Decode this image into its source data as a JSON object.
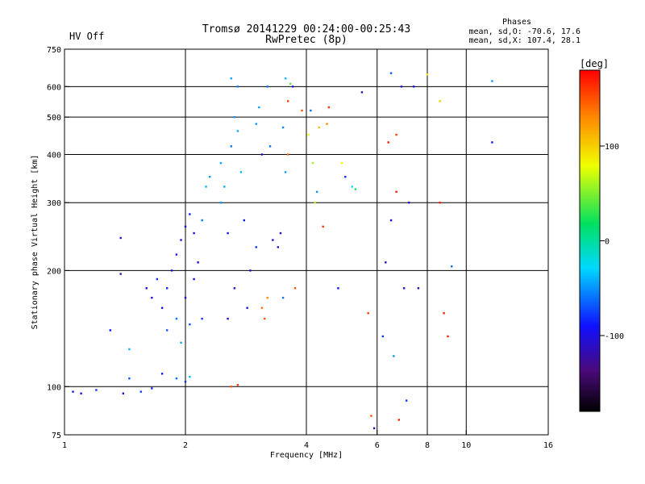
{
  "chart_data": {
    "type": "scatter",
    "title": "Tromsø 20141229 00:24:00-00:25:43",
    "subtitle": "RwPretec (8p)",
    "status_text": "HV Off",
    "status_color": "#cc0000",
    "stats": {
      "heading": "Phases",
      "line1": "mean, sd,O: -70.6, 17.6",
      "line2": "mean, sd,X: 107.4, 28.1"
    },
    "xlabel": "Frequency [MHz]",
    "ylabel": "Stationary phase Virtual Height [km]",
    "x_scale": "log",
    "y_scale": "log",
    "xlim": [
      1,
      16
    ],
    "ylim": [
      75,
      750
    ],
    "x_ticks": [
      "1",
      "2",
      "4",
      "6",
      "8",
      "10",
      "16"
    ],
    "y_ticks": [
      "75",
      "100",
      "200",
      "300",
      "400",
      "500",
      "600",
      "750"
    ],
    "x_grid": [
      2,
      4,
      6,
      8,
      10
    ],
    "y_grid": [
      100,
      200,
      300,
      400,
      500,
      600
    ],
    "grid": true,
    "colorbar": {
      "label": "[deg]",
      "range": [
        -180,
        180
      ],
      "ticks": [
        "100",
        "0",
        "-100"
      ]
    },
    "series": [
      {
        "values": [
          {
            "x": 1.05,
            "y": 97,
            "p": -85
          },
          {
            "x": 1.1,
            "y": 96,
            "p": -90
          },
          {
            "x": 1.2,
            "y": 98,
            "p": -80
          },
          {
            "x": 1.4,
            "y": 96,
            "p": -95
          },
          {
            "x": 1.55,
            "y": 97,
            "p": -75
          },
          {
            "x": 1.65,
            "y": 99,
            "p": -85
          },
          {
            "x": 1.75,
            "y": 108,
            "p": -90
          },
          {
            "x": 1.9,
            "y": 105,
            "p": -60
          },
          {
            "x": 2.0,
            "y": 103,
            "p": -80
          },
          {
            "x": 2.05,
            "y": 106,
            "p": -40
          },
          {
            "x": 2.6,
            "y": 100,
            "p": 150
          },
          {
            "x": 2.7,
            "y": 101,
            "p": 155
          },
          {
            "x": 1.38,
            "y": 243,
            "p": -100
          },
          {
            "x": 1.38,
            "y": 196,
            "p": -120
          },
          {
            "x": 1.45,
            "y": 125,
            "p": -40
          },
          {
            "x": 1.6,
            "y": 180,
            "p": -90
          },
          {
            "x": 1.65,
            "y": 170,
            "p": -100
          },
          {
            "x": 1.7,
            "y": 190,
            "p": -80
          },
          {
            "x": 1.75,
            "y": 160,
            "p": -95
          },
          {
            "x": 1.8,
            "y": 140,
            "p": -70
          },
          {
            "x": 1.8,
            "y": 180,
            "p": -85
          },
          {
            "x": 1.85,
            "y": 200,
            "p": -90
          },
          {
            "x": 1.9,
            "y": 220,
            "p": -100
          },
          {
            "x": 1.9,
            "y": 150,
            "p": -60
          },
          {
            "x": 1.95,
            "y": 240,
            "p": -95
          },
          {
            "x": 1.95,
            "y": 130,
            "p": -40
          },
          {
            "x": 2.0,
            "y": 260,
            "p": -90
          },
          {
            "x": 2.0,
            "y": 170,
            "p": -100
          },
          {
            "x": 2.05,
            "y": 280,
            "p": -85
          },
          {
            "x": 2.05,
            "y": 145,
            "p": -70
          },
          {
            "x": 2.1,
            "y": 250,
            "p": -100
          },
          {
            "x": 2.1,
            "y": 190,
            "p": -90
          },
          {
            "x": 2.15,
            "y": 210,
            "p": -95
          },
          {
            "x": 2.2,
            "y": 150,
            "p": -80
          },
          {
            "x": 2.2,
            "y": 270,
            "p": -60
          },
          {
            "x": 2.25,
            "y": 330,
            "p": -40
          },
          {
            "x": 2.3,
            "y": 350,
            "p": -50
          },
          {
            "x": 2.45,
            "y": 380,
            "p": -45
          },
          {
            "x": 2.45,
            "y": 300,
            "p": -50
          },
          {
            "x": 2.5,
            "y": 330,
            "p": -40
          },
          {
            "x": 2.55,
            "y": 250,
            "p": -90
          },
          {
            "x": 2.55,
            "y": 150,
            "p": -100
          },
          {
            "x": 2.6,
            "y": 420,
            "p": -60
          },
          {
            "x": 2.6,
            "y": 630,
            "p": -45
          },
          {
            "x": 2.65,
            "y": 500,
            "p": -50
          },
          {
            "x": 2.65,
            "y": 180,
            "p": -110
          },
          {
            "x": 2.7,
            "y": 600,
            "p": -55
          },
          {
            "x": 2.7,
            "y": 460,
            "p": -45
          },
          {
            "x": 2.75,
            "y": 360,
            "p": -40
          },
          {
            "x": 2.8,
            "y": 270,
            "p": -90
          },
          {
            "x": 2.85,
            "y": 160,
            "p": -90
          },
          {
            "x": 2.9,
            "y": 200,
            "p": -100
          },
          {
            "x": 3.0,
            "y": 230,
            "p": -80
          },
          {
            "x": 3.0,
            "y": 480,
            "p": -50
          },
          {
            "x": 3.05,
            "y": 530,
            "p": -45
          },
          {
            "x": 3.1,
            "y": 400,
            "p": -110
          },
          {
            "x": 3.1,
            "y": 160,
            "p": 140
          },
          {
            "x": 3.15,
            "y": 150,
            "p": 150
          },
          {
            "x": 3.2,
            "y": 170,
            "p": 130
          },
          {
            "x": 3.2,
            "y": 600,
            "p": -60
          },
          {
            "x": 3.25,
            "y": 420,
            "p": -60
          },
          {
            "x": 3.3,
            "y": 240,
            "p": -100
          },
          {
            "x": 3.4,
            "y": 230,
            "p": -110
          },
          {
            "x": 3.45,
            "y": 250,
            "p": -110
          },
          {
            "x": 3.5,
            "y": 170,
            "p": -60
          },
          {
            "x": 3.5,
            "y": 470,
            "p": -55
          },
          {
            "x": 3.55,
            "y": 360,
            "p": -45
          },
          {
            "x": 3.55,
            "y": 630,
            "p": -40
          },
          {
            "x": 3.6,
            "y": 400,
            "p": 140
          },
          {
            "x": 3.6,
            "y": 550,
            "p": 160
          },
          {
            "x": 3.65,
            "y": 610,
            "p": 40
          },
          {
            "x": 3.7,
            "y": 600,
            "p": -90
          },
          {
            "x": 3.75,
            "y": 180,
            "p": 150
          },
          {
            "x": 3.9,
            "y": 520,
            "p": 150
          },
          {
            "x": 4.05,
            "y": 450,
            "p": 80
          },
          {
            "x": 4.1,
            "y": 520,
            "p": -60
          },
          {
            "x": 4.15,
            "y": 380,
            "p": 60
          },
          {
            "x": 4.2,
            "y": 300,
            "p": 60
          },
          {
            "x": 4.25,
            "y": 320,
            "p": -50
          },
          {
            "x": 4.3,
            "y": 470,
            "p": 110
          },
          {
            "x": 4.4,
            "y": 260,
            "p": 160
          },
          {
            "x": 4.5,
            "y": 480,
            "p": 130
          },
          {
            "x": 4.55,
            "y": 530,
            "p": 160
          },
          {
            "x": 4.8,
            "y": 180,
            "p": -90
          },
          {
            "x": 4.9,
            "y": 380,
            "p": 80
          },
          {
            "x": 5.0,
            "y": 350,
            "p": -80
          },
          {
            "x": 5.2,
            "y": 330,
            "p": -30
          },
          {
            "x": 5.3,
            "y": 325,
            "p": 20
          },
          {
            "x": 5.5,
            "y": 580,
            "p": -120
          },
          {
            "x": 5.7,
            "y": 155,
            "p": 160
          },
          {
            "x": 5.8,
            "y": 84,
            "p": 150
          },
          {
            "x": 5.9,
            "y": 78,
            "p": -120
          },
          {
            "x": 6.2,
            "y": 135,
            "p": -80
          },
          {
            "x": 6.3,
            "y": 210,
            "p": -110
          },
          {
            "x": 6.4,
            "y": 430,
            "p": 170
          },
          {
            "x": 6.5,
            "y": 270,
            "p": -100
          },
          {
            "x": 6.5,
            "y": 650,
            "p": -70
          },
          {
            "x": 6.6,
            "y": 120,
            "p": -50
          },
          {
            "x": 6.7,
            "y": 450,
            "p": 160
          },
          {
            "x": 6.7,
            "y": 320,
            "p": 170
          },
          {
            "x": 6.8,
            "y": 82,
            "p": 170
          },
          {
            "x": 6.9,
            "y": 600,
            "p": -100
          },
          {
            "x": 7.0,
            "y": 180,
            "p": -110
          },
          {
            "x": 7.1,
            "y": 92,
            "p": -80
          },
          {
            "x": 7.2,
            "y": 300,
            "p": -100
          },
          {
            "x": 7.4,
            "y": 600,
            "p": -90
          },
          {
            "x": 7.6,
            "y": 180,
            "p": -120
          },
          {
            "x": 8.0,
            "y": 645,
            "p": 90
          },
          {
            "x": 8.6,
            "y": 300,
            "p": 170
          },
          {
            "x": 8.6,
            "y": 550,
            "p": 100
          },
          {
            "x": 8.8,
            "y": 155,
            "p": 170
          },
          {
            "x": 9.0,
            "y": 135,
            "p": 170
          },
          {
            "x": 9.2,
            "y": 205,
            "p": -60
          },
          {
            "x": 11.6,
            "y": 620,
            "p": -50
          },
          {
            "x": 11.6,
            "y": 430,
            "p": -90
          },
          {
            "x": 1.3,
            "y": 140,
            "p": -90
          },
          {
            "x": 1.45,
            "y": 105,
            "p": -70
          }
        ]
      }
    ]
  }
}
